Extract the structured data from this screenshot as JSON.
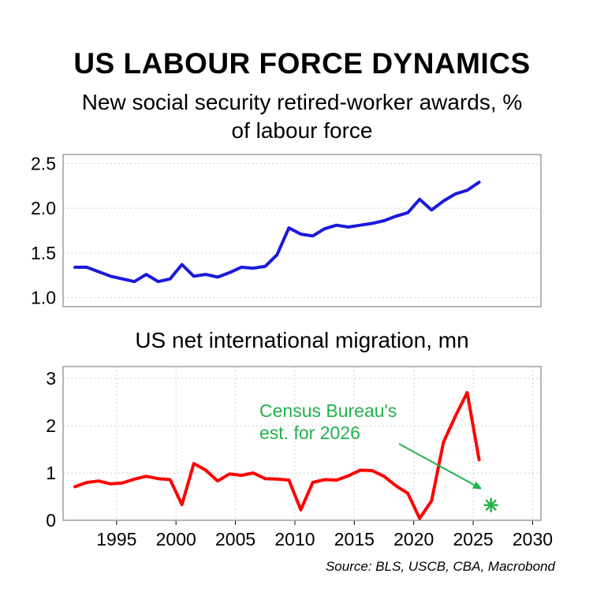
{
  "title": "US LABOUR FORCE DYNAMICS",
  "source": "Source: BLS, USCB, CBA, Macrobond",
  "colors": {
    "top_series": "#1a1adb",
    "bottom_series": "#ff0000",
    "annotation": "#22b24c",
    "frame": "#9e9e9e",
    "grid": "#d0d0d0"
  },
  "chart_data": [
    {
      "type": "line",
      "title": "New social security retired-worker awards, % of labour force",
      "title_lines": [
        "New social security retired-worker awards, %",
        "of labour force"
      ],
      "xlim": [
        1990.5,
        2030.7
      ],
      "ylim": [
        0.9,
        2.6
      ],
      "yticks": [
        1.0,
        1.5,
        2.0,
        2.5
      ],
      "ytick_labels": [
        "1.0",
        "1.5",
        "2.0",
        "2.5"
      ],
      "grid": true,
      "series": [
        {
          "x": [
            1991.5,
            1992.5,
            1993.5,
            1994.5,
            1995.5,
            1996.5,
            1997.5,
            1998.5,
            1999.5,
            2000.5,
            2001.5,
            2002.5,
            2003.5,
            2004.5,
            2005.5,
            2006.5,
            2007.5,
            2008.5,
            2009.5,
            2010.5,
            2011.5,
            2012.5,
            2013.5,
            2014.5,
            2015.5,
            2016.5,
            2017.5,
            2018.5,
            2019.5,
            2020.5,
            2021.5,
            2022.5,
            2023.5,
            2024.5,
            2025.5
          ],
          "y": [
            1.34,
            1.34,
            1.29,
            1.24,
            1.21,
            1.18,
            1.26,
            1.18,
            1.21,
            1.37,
            1.24,
            1.26,
            1.23,
            1.28,
            1.34,
            1.33,
            1.35,
            1.48,
            1.78,
            1.71,
            1.69,
            1.77,
            1.81,
            1.79,
            1.81,
            1.83,
            1.86,
            1.91,
            1.95,
            2.1,
            1.98,
            2.08,
            2.16,
            2.2,
            2.29
          ]
        }
      ]
    },
    {
      "type": "line",
      "title": "US net international migration, mn",
      "xlim": [
        1990.5,
        2030.7
      ],
      "ylim": [
        0,
        3.25
      ],
      "yticks": [
        0,
        1,
        2,
        3
      ],
      "ytick_labels": [
        "0",
        "1",
        "2",
        "3"
      ],
      "xticks": [
        1995,
        2000,
        2005,
        2010,
        2015,
        2020,
        2025,
        2030
      ],
      "xtick_labels": [
        "1995",
        "2000",
        "2005",
        "2010",
        "2015",
        "2020",
        "2025",
        "2030"
      ],
      "grid": true,
      "series": [
        {
          "x": [
            1991.5,
            1992.5,
            1993.5,
            1994.5,
            1995.5,
            1996.5,
            1997.5,
            1998.5,
            1999.5,
            2000.5,
            2001.5,
            2002.5,
            2003.5,
            2004.5,
            2005.5,
            2006.5,
            2007.5,
            2008.5,
            2009.5,
            2010.5,
            2011.5,
            2012.5,
            2013.5,
            2014.5,
            2015.5,
            2016.5,
            2017.5,
            2018.5,
            2019.5,
            2020.5,
            2021.5,
            2022.5,
            2023.5,
            2024.5,
            2025.5
          ],
          "y": [
            0.71,
            0.8,
            0.83,
            0.77,
            0.79,
            0.87,
            0.93,
            0.88,
            0.86,
            0.33,
            1.2,
            1.06,
            0.83,
            0.98,
            0.95,
            1.0,
            0.88,
            0.87,
            0.85,
            0.22,
            0.8,
            0.86,
            0.85,
            0.94,
            1.06,
            1.05,
            0.93,
            0.73,
            0.57,
            0.04,
            0.41,
            1.65,
            2.2,
            2.7,
            1.28
          ]
        }
      ],
      "annotation": {
        "text": "Census Bureau's est. for 2026",
        "lines": [
          "Census Bureau's",
          "est. for 2026"
        ],
        "marker": {
          "x": 2026.5,
          "y": 0.32
        },
        "arrow_to": {
          "x": 2025.7,
          "y": 0.65
        }
      }
    }
  ]
}
